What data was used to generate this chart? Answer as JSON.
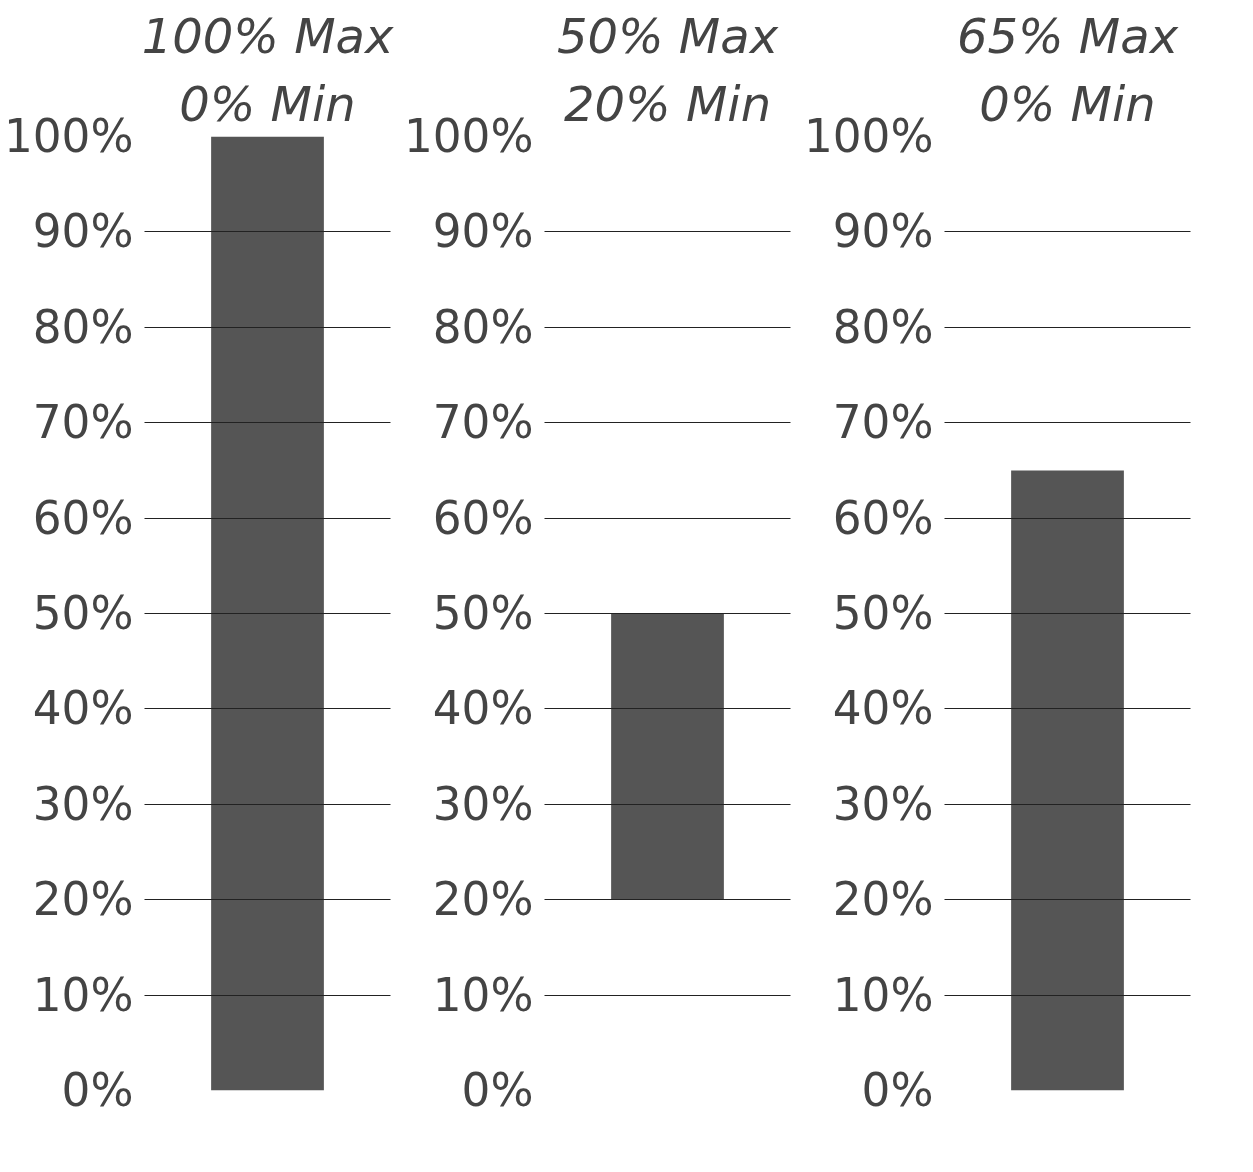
{
  "chart_data": [
    {
      "type": "bar",
      "title": "100% Max",
      "subtitle": "0% Min",
      "categories": [
        null
      ],
      "values": [
        100
      ],
      "base": [
        0
      ],
      "color": "#555555",
      "ylim": [
        0,
        100
      ],
      "yticks": [
        {
          "value": 0,
          "label": "0%"
        },
        {
          "value": 10,
          "label": "10%"
        },
        {
          "value": 20,
          "label": "20%"
        },
        {
          "value": 30,
          "label": "30%"
        },
        {
          "value": 40,
          "label": "40%"
        },
        {
          "value": 50,
          "label": "50%"
        },
        {
          "value": 60,
          "label": "60%"
        },
        {
          "value": 70,
          "label": "70%"
        },
        {
          "value": 80,
          "label": "80%"
        },
        {
          "value": 90,
          "label": "90%"
        },
        {
          "value": 100,
          "label": "100%"
        }
      ],
      "grid": "y",
      "tick_labels": "y"
    },
    {
      "type": "bar",
      "title": "50% Max",
      "subtitle": "20% Min",
      "categories": [
        null
      ],
      "values": [
        30
      ],
      "base": [
        20
      ],
      "color": "#555555",
      "ylim": [
        0,
        100
      ],
      "yticks": [
        {
          "value": 0,
          "label": "0%"
        },
        {
          "value": 10,
          "label": "10%"
        },
        {
          "value": 20,
          "label": "20%"
        },
        {
          "value": 30,
          "label": "30%"
        },
        {
          "value": 40,
          "label": "40%"
        },
        {
          "value": 50,
          "label": "50%"
        },
        {
          "value": 60,
          "label": "60%"
        },
        {
          "value": 70,
          "label": "70%"
        },
        {
          "value": 80,
          "label": "80%"
        },
        {
          "value": 90,
          "label": "90%"
        },
        {
          "value": 100,
          "label": "100%"
        }
      ],
      "grid": "y",
      "tick_labels": "y"
    },
    {
      "type": "bar",
      "title": "65% Max",
      "subtitle": "0% Min",
      "categories": [
        null
      ],
      "values": [
        65
      ],
      "base": [
        0
      ],
      "color": "#555555",
      "ylim": [
        0,
        100
      ],
      "yticks": [
        {
          "value": 0,
          "label": "0%"
        },
        {
          "value": 10,
          "label": "10%"
        },
        {
          "value": 20,
          "label": "20%"
        },
        {
          "value": 30,
          "label": "30%"
        },
        {
          "value": 40,
          "label": "40%"
        },
        {
          "value": 50,
          "label": "50%"
        },
        {
          "value": 60,
          "label": "60%"
        },
        {
          "value": 70,
          "label": "70%"
        },
        {
          "value": 80,
          "label": "80%"
        },
        {
          "value": 90,
          "label": "90%"
        },
        {
          "value": 100,
          "label": "100%"
        }
      ],
      "grid": "y",
      "tick_labels": "y"
    }
  ]
}
